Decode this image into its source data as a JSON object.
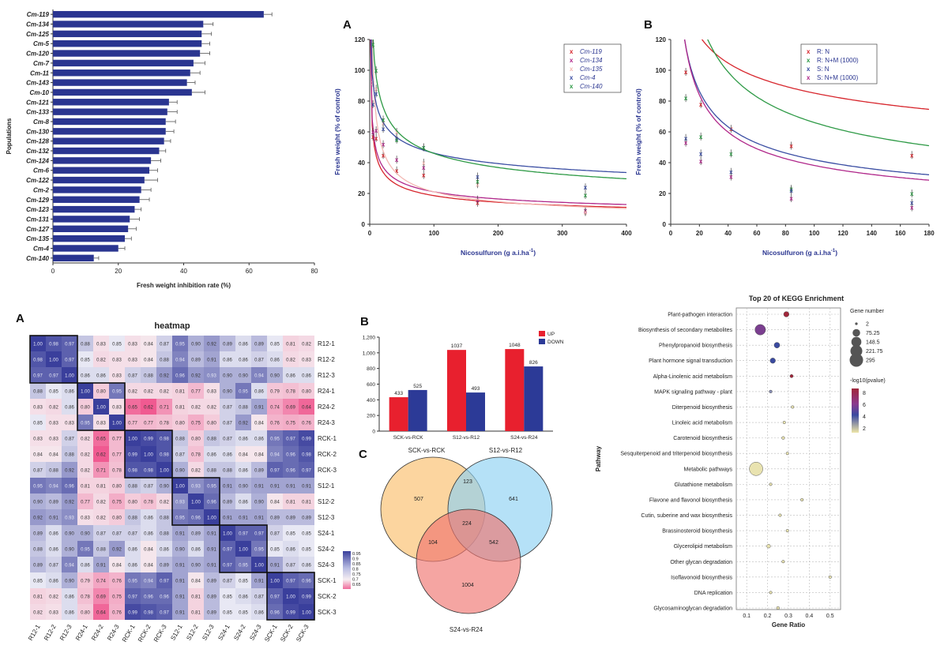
{
  "chart_data": [
    {
      "id": "bar_inhibition",
      "type": "bar",
      "orientation": "horizontal",
      "categories": [
        "Cm-119",
        "Cm-134",
        "Cm-125",
        "Cm-5",
        "Cm-120",
        "Cm-7",
        "Cm-11",
        "Cm-143",
        "Cm-10",
        "Cm-121",
        "Cm-133",
        "Cm-8",
        "Cm-130",
        "Cm-128",
        "Cm-132",
        "Cm-124",
        "Cm-6",
        "Cm-122",
        "Cm-2",
        "Cm-129",
        "Cm-123",
        "Cm-131",
        "Cm-127",
        "Cm-135",
        "Cm-4",
        "Cm-140"
      ],
      "values": [
        64.5,
        46,
        45.5,
        45.5,
        45,
        43,
        42,
        41,
        42.5,
        35.5,
        35,
        34.5,
        34.5,
        34,
        32.5,
        30,
        29.5,
        28,
        27,
        26.5,
        25,
        23.5,
        23,
        22,
        20,
        12.5
      ],
      "errors": [
        2.5,
        3,
        3,
        2.5,
        3,
        3.5,
        3,
        2.5,
        4,
        2.5,
        3,
        3,
        2.5,
        2,
        2,
        3,
        2.5,
        4,
        3,
        3,
        2,
        3,
        2.5,
        2,
        2,
        1.5
      ],
      "xlabel": "Fresh weight inhibition rate (%)",
      "ylabel": "Populations",
      "xlim": [
        0,
        80
      ],
      "xticks": [
        "0",
        "20",
        "40",
        "60",
        "80"
      ],
      "color": "#2a3590"
    },
    {
      "id": "dose_A",
      "type": "scatter",
      "panel_letter": "A",
      "xlabel": "Nicosulfuron (g a.i.ha",
      "xlabel_sup": "-1",
      "ylabel": "Fresh weight (% of control)",
      "xlim": [
        0,
        400
      ],
      "ylim": [
        0,
        120
      ],
      "xticks": [
        "0",
        "100",
        "200",
        "300",
        "400"
      ],
      "yticks": [
        "0",
        "20",
        "40",
        "60",
        "80",
        "100",
        "120"
      ],
      "series": [
        {
          "name": "Cm-119",
          "color": "#d7262d",
          "x": [
            5,
            10,
            21,
            42,
            84,
            168,
            336
          ],
          "y": [
            57,
            56,
            45,
            35,
            32,
            14,
            8
          ],
          "curve": [
            58,
            -0.38
          ]
        },
        {
          "name": "Cm-134",
          "color": "#b0278a",
          "x": [
            5,
            10,
            21,
            42,
            84,
            168,
            336
          ],
          "y": [
            60,
            61,
            52,
            42,
            37,
            16,
            9
          ],
          "curve": [
            62,
            -0.36
          ]
        },
        {
          "name": "Cm-135",
          "color": "#f3b8b3",
          "x": [
            5,
            10,
            21,
            42,
            84,
            168,
            336
          ],
          "y": [
            92,
            88,
            66,
            60,
            40,
            26,
            8
          ],
          "curve": [
            100,
            -0.52
          ]
        },
        {
          "name": "Cm-4",
          "color": "#3b4ea3",
          "x": [
            5,
            10,
            21,
            42,
            84,
            168,
            336
          ],
          "y": [
            78,
            85,
            62,
            56,
            50,
            31,
            24
          ],
          "curve": [
            92,
            -0.23
          ]
        },
        {
          "name": "Cm-140",
          "color": "#2e9a46",
          "x": [
            5,
            10,
            21,
            42,
            84,
            168,
            336
          ],
          "y": [
            117,
            100,
            68,
            55,
            50,
            28,
            19
          ],
          "curve": [
            120,
            -0.32
          ]
        }
      ]
    },
    {
      "id": "dose_B",
      "type": "scatter",
      "panel_letter": "B",
      "xlabel": "Nicosulfuron (g a.i.ha",
      "xlabel_sup": "-1",
      "ylabel": "Fresh weight (% of control)",
      "xlim": [
        0,
        180
      ],
      "ylim": [
        0,
        120
      ],
      "xticks": [
        "0",
        "20",
        "40",
        "60",
        "80",
        "100",
        "120",
        "140",
        "160",
        "180"
      ],
      "yticks": [
        "0",
        "20",
        "40",
        "60",
        "80",
        "100",
        "120"
      ],
      "series": [
        {
          "name": "R: N",
          "color": "#d7262d",
          "x": [
            10.5,
            21,
            42,
            84,
            168
          ],
          "y": [
            99,
            78,
            62,
            51,
            45
          ],
          "curve": [
            143,
            -0.225
          ]
        },
        {
          "name": "R: N+M (1000)",
          "color": "#2e9a46",
          "x": [
            10.5,
            21,
            42,
            84,
            168
          ],
          "y": [
            82,
            57,
            46,
            23,
            20
          ],
          "curve": [
            182,
            -0.44
          ]
        },
        {
          "name": "S: N",
          "color": "#3b4ea3",
          "x": [
            10.5,
            21,
            42,
            84,
            168
          ],
          "y": [
            56,
            46,
            34,
            22,
            14
          ],
          "curve": [
            118,
            -0.45
          ]
        },
        {
          "name": "S: N+M (1000)",
          "color": "#b0278a",
          "x": [
            10.5,
            21,
            42,
            84,
            168
          ],
          "y": [
            53,
            41,
            31,
            17,
            11
          ],
          "curve": [
            118,
            -0.49
          ]
        }
      ]
    },
    {
      "id": "heatmap",
      "type": "heatmap",
      "panel_letter": "A",
      "title": "heatmap",
      "labels": [
        "R12-1",
        "R12-2",
        "R12-3",
        "R24-1",
        "R24-2",
        "R24-3",
        "RCK-1",
        "RCK-2",
        "RCK-3",
        "S12-1",
        "S12-2",
        "S12-3",
        "S24-1",
        "S24-2",
        "S24-3",
        "SCK-1",
        "SCK-2",
        "SCK-3"
      ],
      "matrix": [
        [
          1.0,
          0.98,
          0.97,
          0.88,
          0.83,
          0.85,
          0.83,
          0.84,
          0.87,
          0.95,
          0.9,
          0.92,
          0.89,
          0.86,
          0.89,
          0.85,
          0.81,
          0.82
        ],
        [
          0.98,
          1.0,
          0.97,
          0.85,
          0.82,
          0.83,
          0.83,
          0.84,
          0.88,
          0.94,
          0.89,
          0.91,
          0.86,
          0.86,
          0.87,
          0.86,
          0.82,
          0.83
        ],
        [
          0.97,
          0.97,
          1.0,
          0.86,
          0.86,
          0.83,
          0.87,
          0.88,
          0.92,
          0.96,
          0.92,
          0.93,
          0.9,
          0.9,
          0.94,
          0.9,
          0.86,
          0.86
        ],
        [
          0.88,
          0.85,
          0.86,
          1.0,
          0.8,
          0.95,
          0.82,
          0.82,
          0.82,
          0.81,
          0.77,
          0.83,
          0.9,
          0.95,
          0.86,
          0.79,
          0.78,
          0.8
        ],
        [
          0.83,
          0.82,
          0.86,
          0.8,
          1.0,
          0.83,
          0.65,
          0.62,
          0.71,
          0.81,
          0.82,
          0.82,
          0.87,
          0.88,
          0.91,
          0.74,
          0.69,
          0.64
        ],
        [
          0.85,
          0.83,
          0.83,
          0.95,
          0.83,
          1.0,
          0.77,
          0.77,
          0.78,
          0.8,
          0.75,
          0.8,
          0.87,
          0.92,
          0.84,
          0.76,
          0.75,
          0.76
        ],
        [
          0.83,
          0.83,
          0.87,
          0.82,
          0.65,
          0.77,
          1.0,
          0.99,
          0.98,
          0.88,
          0.8,
          0.88,
          0.87,
          0.86,
          0.86,
          0.95,
          0.97,
          0.99
        ],
        [
          0.84,
          0.84,
          0.88,
          0.82,
          0.62,
          0.77,
          0.99,
          1.0,
          0.98,
          0.87,
          0.78,
          0.86,
          0.86,
          0.84,
          0.84,
          0.94,
          0.96,
          0.98
        ],
        [
          0.87,
          0.88,
          0.92,
          0.82,
          0.71,
          0.78,
          0.98,
          0.98,
          1.0,
          0.9,
          0.82,
          0.88,
          0.88,
          0.86,
          0.89,
          0.97,
          0.96,
          0.97
        ],
        [
          0.95,
          0.94,
          0.96,
          0.81,
          0.81,
          0.8,
          0.88,
          0.87,
          0.9,
          1.0,
          0.93,
          0.95,
          0.91,
          0.9,
          0.91,
          0.91,
          0.91,
          0.91
        ],
        [
          0.9,
          0.89,
          0.92,
          0.77,
          0.82,
          0.75,
          0.8,
          0.78,
          0.82,
          0.93,
          1.0,
          0.96,
          0.89,
          0.86,
          0.9,
          0.84,
          0.81,
          0.81
        ],
        [
          0.92,
          0.91,
          0.93,
          0.83,
          0.82,
          0.8,
          0.88,
          0.86,
          0.88,
          0.95,
          0.96,
          1.0,
          0.91,
          0.91,
          0.91,
          0.89,
          0.89,
          0.89
        ],
        [
          0.89,
          0.86,
          0.9,
          0.9,
          0.87,
          0.87,
          0.87,
          0.86,
          0.88,
          0.91,
          0.89,
          0.91,
          1.0,
          0.97,
          0.97,
          0.87,
          0.85,
          0.85
        ],
        [
          0.88,
          0.86,
          0.9,
          0.95,
          0.88,
          0.92,
          0.86,
          0.84,
          0.86,
          0.9,
          0.86,
          0.91,
          0.97,
          1.0,
          0.95,
          0.85,
          0.86,
          0.85
        ],
        [
          0.89,
          0.87,
          0.94,
          0.86,
          0.91,
          0.84,
          0.86,
          0.84,
          0.89,
          0.91,
          0.9,
          0.91,
          0.97,
          0.95,
          1.0,
          0.91,
          0.87,
          0.86
        ],
        [
          0.85,
          0.86,
          0.9,
          0.79,
          0.74,
          0.76,
          0.95,
          0.94,
          0.97,
          0.91,
          0.84,
          0.89,
          0.87,
          0.85,
          0.91,
          1.0,
          0.97,
          0.96
        ],
        [
          0.81,
          0.82,
          0.86,
          0.78,
          0.69,
          0.75,
          0.97,
          0.96,
          0.96,
          0.91,
          0.81,
          0.89,
          0.85,
          0.86,
          0.87,
          0.97,
          1.0,
          0.99
        ],
        [
          0.82,
          0.83,
          0.86,
          0.8,
          0.64,
          0.76,
          0.99,
          0.98,
          0.97,
          0.91,
          0.81,
          0.89,
          0.85,
          0.85,
          0.86,
          0.96,
          0.99,
          1.0
        ]
      ],
      "legend_values": [
        "0.95",
        "0.9",
        "0.85",
        "0.8",
        "0.75",
        "0.7",
        "0.65"
      ]
    },
    {
      "id": "deg_bars",
      "type": "bar",
      "panel_letter": "B",
      "categories": [
        "SCK-vs-RCK",
        "S12-vs-R12",
        "S24-vs-R24"
      ],
      "series": [
        {
          "name": "UP",
          "color": "#e8202e",
          "values": [
            433,
            1037,
            1048
          ]
        },
        {
          "name": "DOWN",
          "color": "#2c3a97",
          "values": [
            525,
            493,
            826
          ]
        }
      ],
      "ylim": [
        0,
        1200
      ],
      "yticks": [
        "0",
        "200",
        "400",
        "600",
        "800",
        "1,000",
        "1,200"
      ]
    },
    {
      "id": "venn",
      "type": "venn",
      "panel_letter": "C",
      "sets": [
        "SCK-vs-RCK",
        "S12-vs-R12",
        "S24-vs-R24"
      ],
      "regions": {
        "a_only": 507,
        "b_only": 641,
        "c_only": 1004,
        "ab": 123,
        "ac": 104,
        "bc": 542,
        "abc": 224
      }
    },
    {
      "id": "kegg",
      "type": "scatter",
      "title": "Top 20 of KEGG Enrichment",
      "xlabel": "Gene Ratio",
      "ylabel": "Pathway",
      "xlim": [
        0.05,
        0.55
      ],
      "xticks": [
        "0.1",
        "0.2",
        "0.3",
        "0.4",
        "0.5"
      ],
      "pathways": [
        "Plant-pathogen interaction",
        "Biosynthesis of secondary metabolites",
        "Phenylpropanoid biosynthesis",
        "Plant hormone signal transduction",
        "Alpha-Linolenic acid metabolism",
        "MAPK signaling pathway - plant",
        "Diterpenoid biosynthesis",
        "Linoleic acid metabolism",
        "Carotenoid biosynthesis",
        "Sesquiterpenoid and triterpenoid biosynthesis",
        "Metabolic pathways",
        "Glutathione metabolism",
        "Flavone and flavonol biosynthesis",
        "Cutin, suberine and wax biosynthesis",
        "Brassinosteroid biosynthesis",
        "Glycerolipid metabolism",
        "Other glycan degradation",
        "Isoflavonoid biosynthesis",
        "DNA replication",
        "Glycosaminoglycan degradation"
      ],
      "gene_ratio": [
        0.29,
        0.165,
        0.245,
        0.225,
        0.315,
        0.215,
        0.32,
        0.28,
        0.275,
        0.295,
        0.145,
        0.215,
        0.365,
        0.26,
        0.295,
        0.205,
        0.275,
        0.5,
        0.215,
        0.25
      ],
      "gene_number": [
        30,
        170,
        35,
        30,
        6,
        4,
        3,
        3,
        4,
        3,
        295,
        3,
        3,
        3,
        3,
        10,
        3,
        3,
        3,
        4
      ],
      "neg_log10_p": [
        7.4,
        5.6,
        4.6,
        4.0,
        5.8,
        2.6,
        2.2,
        2.3,
        2.3,
        2.0,
        2.0,
        2.0,
        2.0,
        2.0,
        2.0,
        2.3,
        2.0,
        2.0,
        2.0,
        2.0
      ],
      "size_legend_title": "Gene number",
      "size_legend": [
        "2",
        "75.25",
        "148.5",
        "221.75",
        "295"
      ],
      "color_legend_title": "-log10(pvalue)",
      "color_legend": [
        "8",
        "6",
        "4",
        "2"
      ]
    }
  ]
}
